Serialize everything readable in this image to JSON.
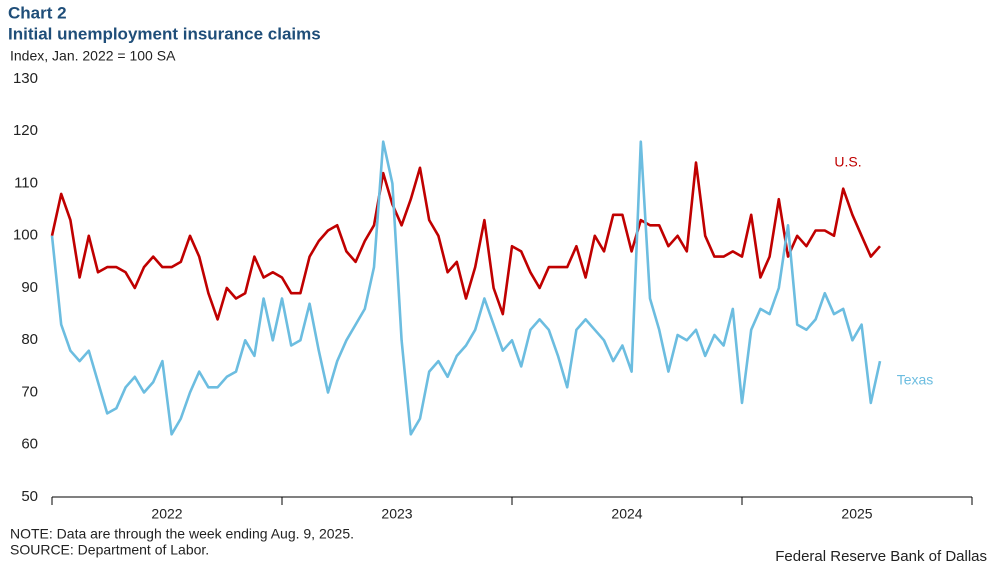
{
  "chart_data": {
    "type": "line",
    "chart_label": "Chart 2",
    "title": "Initial unemployment insurance claims",
    "subtitle": "Index,  Jan. 2022 = 100 SA",
    "note": "NOTE: Data are through the week ending Aug. 9, 2025.",
    "source": "SOURCE: Department of Labor.",
    "credit": "Federal Reserve Bank of Dallas",
    "x": [
      2022,
      2022.04,
      2022.08,
      2022.12,
      2022.16,
      2022.2,
      2022.24,
      2022.28,
      2022.32,
      2022.36,
      2022.4,
      2022.44,
      2022.48,
      2022.52,
      2022.56,
      2022.6,
      2022.64,
      2022.68,
      2022.72,
      2022.76,
      2022.8,
      2022.84,
      2022.88,
      2022.92,
      2022.96,
      2023,
      2023.04,
      2023.08,
      2023.12,
      2023.16,
      2023.2,
      2023.24,
      2023.28,
      2023.32,
      2023.36,
      2023.4,
      2023.44,
      2023.48,
      2023.52,
      2023.56,
      2023.6,
      2023.64,
      2023.68,
      2023.72,
      2023.76,
      2023.8,
      2023.84,
      2023.88,
      2023.92,
      2023.96,
      2024,
      2024.04,
      2024.08,
      2024.12,
      2024.16,
      2024.2,
      2024.24,
      2024.28,
      2024.32,
      2024.36,
      2024.4,
      2024.44,
      2024.48,
      2024.52,
      2024.56,
      2024.6,
      2024.64,
      2024.68,
      2024.72,
      2024.76,
      2024.8,
      2024.84,
      2024.88,
      2024.92,
      2024.96,
      2025,
      2025.04,
      2025.08,
      2025.12,
      2025.16,
      2025.2,
      2025.24,
      2025.28,
      2025.32,
      2025.36,
      2025.4,
      2025.44,
      2025.48,
      2025.52,
      2025.56,
      2025.6
    ],
    "series": [
      {
        "name": "U.S.",
        "color": "#c00000",
        "values": [
          100,
          108,
          103,
          92,
          100,
          93,
          94,
          94,
          93,
          90,
          94,
          96,
          94,
          94,
          95,
          100,
          96,
          89,
          84,
          90,
          88,
          89,
          96,
          92,
          93,
          92,
          89,
          89,
          96,
          99,
          101,
          102,
          97,
          95,
          99,
          102,
          112,
          106,
          102,
          107,
          113,
          103,
          100,
          93,
          95,
          88,
          94,
          103,
          90,
          85,
          98,
          97,
          93,
          90,
          94,
          94,
          94,
          98,
          92,
          100,
          97,
          104,
          104,
          97,
          103,
          102,
          102,
          98,
          100,
          97,
          114,
          100,
          96,
          96,
          97,
          96,
          104,
          92,
          96,
          107,
          96,
          100,
          98,
          101,
          101,
          100,
          109,
          104,
          100,
          96,
          98
        ]
      },
      {
        "name": "Texas",
        "color": "#6cbde0",
        "values": [
          100,
          83,
          78,
          76,
          78,
          72,
          66,
          67,
          71,
          73,
          70,
          72,
          76,
          62,
          65,
          70,
          74,
          71,
          71,
          73,
          74,
          80,
          77,
          88,
          80,
          88,
          79,
          80,
          87,
          78,
          70,
          76,
          80,
          83,
          86,
          94,
          118,
          110,
          80,
          62,
          65,
          74,
          76,
          73,
          77,
          79,
          82,
          88,
          83,
          78,
          80,
          75,
          82,
          84,
          82,
          77,
          71,
          82,
          84,
          82,
          80,
          76,
          79,
          74,
          118,
          88,
          82,
          74,
          81,
          80,
          82,
          77,
          81,
          79,
          86,
          68,
          82,
          86,
          85,
          90,
          102,
          83,
          82,
          84,
          89,
          85,
          86,
          80,
          83,
          68,
          76
        ]
      }
    ],
    "xlim": [
      2022,
      2026
    ],
    "xticks": [
      {
        "value": 2022.5,
        "label": "2022"
      },
      {
        "value": 2023.5,
        "label": "2023"
      },
      {
        "value": 2024.5,
        "label": "2024"
      },
      {
        "value": 2025.5,
        "label": "2025"
      }
    ],
    "ylim": [
      50,
      130
    ],
    "yticks": [
      50,
      60,
      70,
      80,
      90,
      100,
      110,
      120,
      130
    ],
    "grid": false
  }
}
